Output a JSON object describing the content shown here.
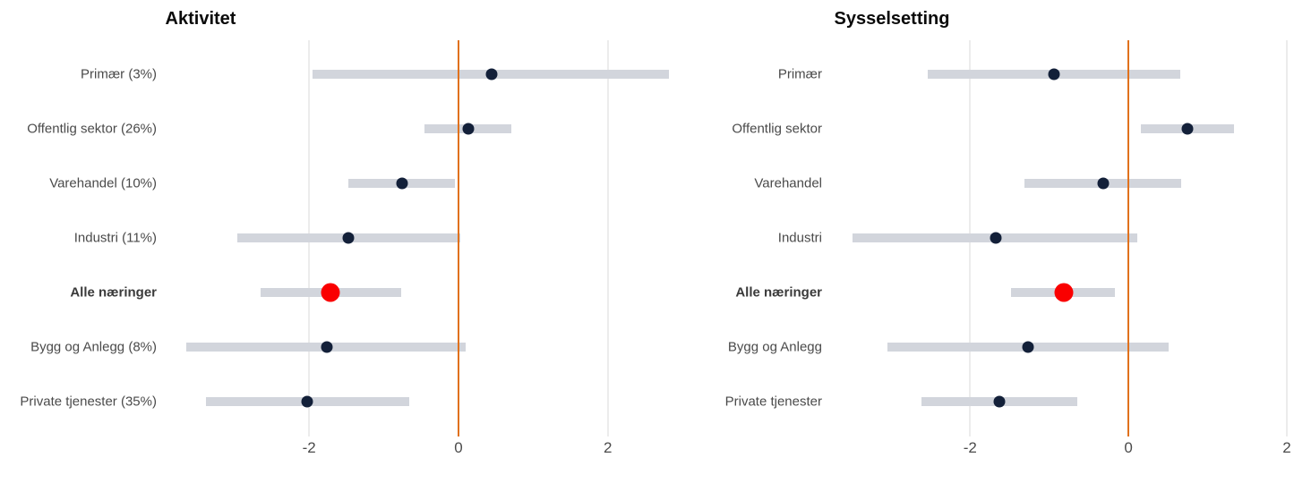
{
  "colors": {
    "background": "#ffffff",
    "interval_bar": "#d2d5dc",
    "point": "#132039",
    "highlight_point": "#fa0000",
    "zero_line": "#e0711c",
    "gridline": "#ececec",
    "title_text": "#0a0a0a",
    "label_text": "#4a4a4a",
    "tick_text": "#4b4b4b"
  },
  "chart_data": [
    {
      "type": "pointrange",
      "title": "Aktivitet",
      "orientation": "horizontal",
      "xlim": [
        -3.86,
        3.01
      ],
      "xticks": [
        -2,
        0,
        2
      ],
      "zero_line_at": 0,
      "grid": "vertical-at-ticks",
      "legend": "none",
      "rows": [
        {
          "label": "Primær (3%)",
          "estimate": 0.45,
          "ci_low": -1.95,
          "ci_high": 2.82,
          "emphasis": false
        },
        {
          "label": "Offentlig sektor (26%)",
          "estimate": 0.13,
          "ci_low": -0.46,
          "ci_high": 0.71,
          "emphasis": false
        },
        {
          "label": "Varehandel (10%)",
          "estimate": -0.76,
          "ci_low": -1.47,
          "ci_high": -0.05,
          "emphasis": false
        },
        {
          "label": "Industri (11%)",
          "estimate": -1.47,
          "ci_low": -2.96,
          "ci_high": 0.02,
          "emphasis": false
        },
        {
          "label": "Alle næringer",
          "estimate": -1.71,
          "ci_low": -2.65,
          "ci_high": -0.77,
          "emphasis": true
        },
        {
          "label": "Bygg og Anlegg (8%)",
          "estimate": -1.76,
          "ci_low": -3.65,
          "ci_high": 0.1,
          "emphasis": false
        },
        {
          "label": "Private tjenester (35%)",
          "estimate": -2.03,
          "ci_low": -3.38,
          "ci_high": -0.66,
          "emphasis": false
        }
      ]
    },
    {
      "type": "pointrange",
      "title": "Sysselsetting",
      "orientation": "horizontal",
      "xlim": [
        -3.62,
        2.09
      ],
      "xticks": [
        -2,
        0,
        2
      ],
      "zero_line_at": 0,
      "grid": "vertical-at-ticks",
      "legend": "none",
      "rows": [
        {
          "label": "Primær",
          "estimate": -0.94,
          "ci_low": -2.53,
          "ci_high": 0.65,
          "emphasis": false
        },
        {
          "label": "Offentlig sektor",
          "estimate": 0.74,
          "ci_low": 0.16,
          "ci_high": 1.33,
          "emphasis": false
        },
        {
          "label": "Varehandel",
          "estimate": -0.32,
          "ci_low": -1.31,
          "ci_high": 0.67,
          "emphasis": false
        },
        {
          "label": "Industri",
          "estimate": -1.68,
          "ci_low": -3.48,
          "ci_high": 0.11,
          "emphasis": false
        },
        {
          "label": "Alle næringer",
          "estimate": -0.82,
          "ci_low": -1.48,
          "ci_high": -0.17,
          "emphasis": true
        },
        {
          "label": "Bygg og Anlegg",
          "estimate": -1.27,
          "ci_low": -3.04,
          "ci_high": 0.51,
          "emphasis": false
        },
        {
          "label": "Private tjenester",
          "estimate": -1.63,
          "ci_low": -2.61,
          "ci_high": -0.65,
          "emphasis": false
        }
      ]
    }
  ]
}
